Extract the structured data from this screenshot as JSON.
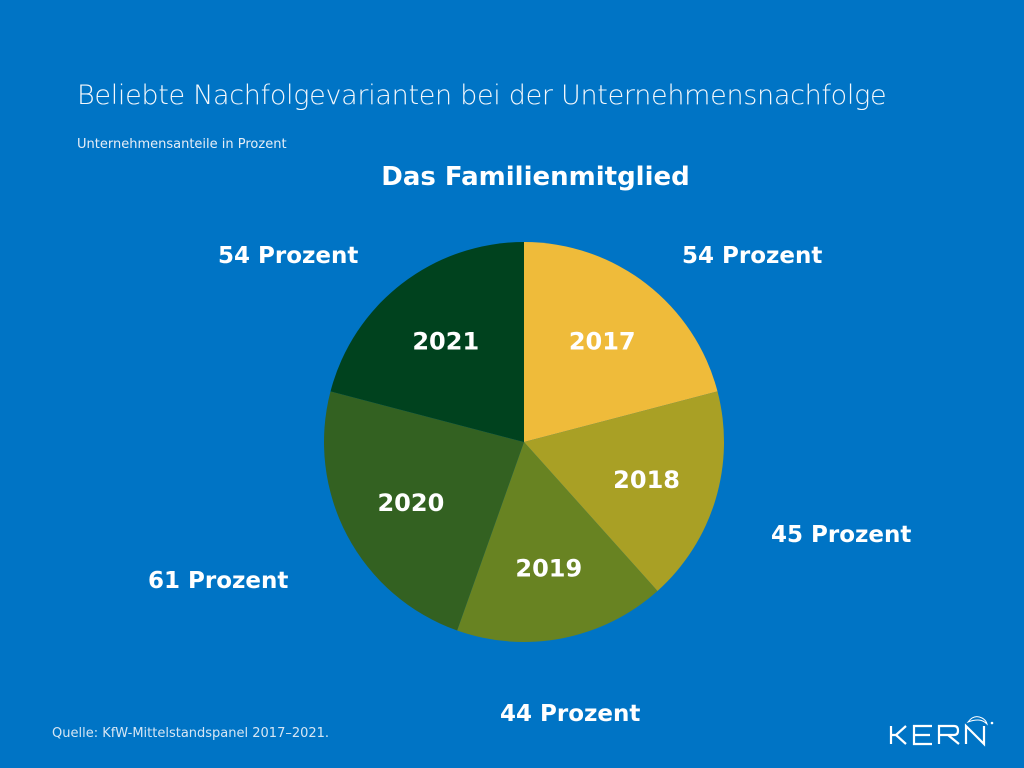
{
  "header": {
    "title": "Beliebte Nachfolgevarianten bei der Unternehmensnachfolge",
    "subtitle": "Unternehmensanteile in Prozent"
  },
  "footer": {
    "source": "Quelle: KfW-Mittelstandspanel 2017–2021.",
    "logo_text": "KERN"
  },
  "chart_data": {
    "type": "pie",
    "title": "Das Familienmitglied",
    "categories": [
      "2017",
      "2018",
      "2019",
      "2020",
      "2021"
    ],
    "values": [
      54,
      45,
      44,
      61,
      54
    ],
    "unit": "Prozent",
    "value_labels": [
      "54 Prozent",
      "45 Prozent",
      "44 Prozent",
      "61 Prozent",
      "54 Prozent"
    ],
    "colors": [
      "#efbb3a",
      "#a9a025",
      "#688322",
      "#336121",
      "#00421e"
    ],
    "start_angle": "top",
    "direction": "clockwise",
    "legend": "none"
  }
}
